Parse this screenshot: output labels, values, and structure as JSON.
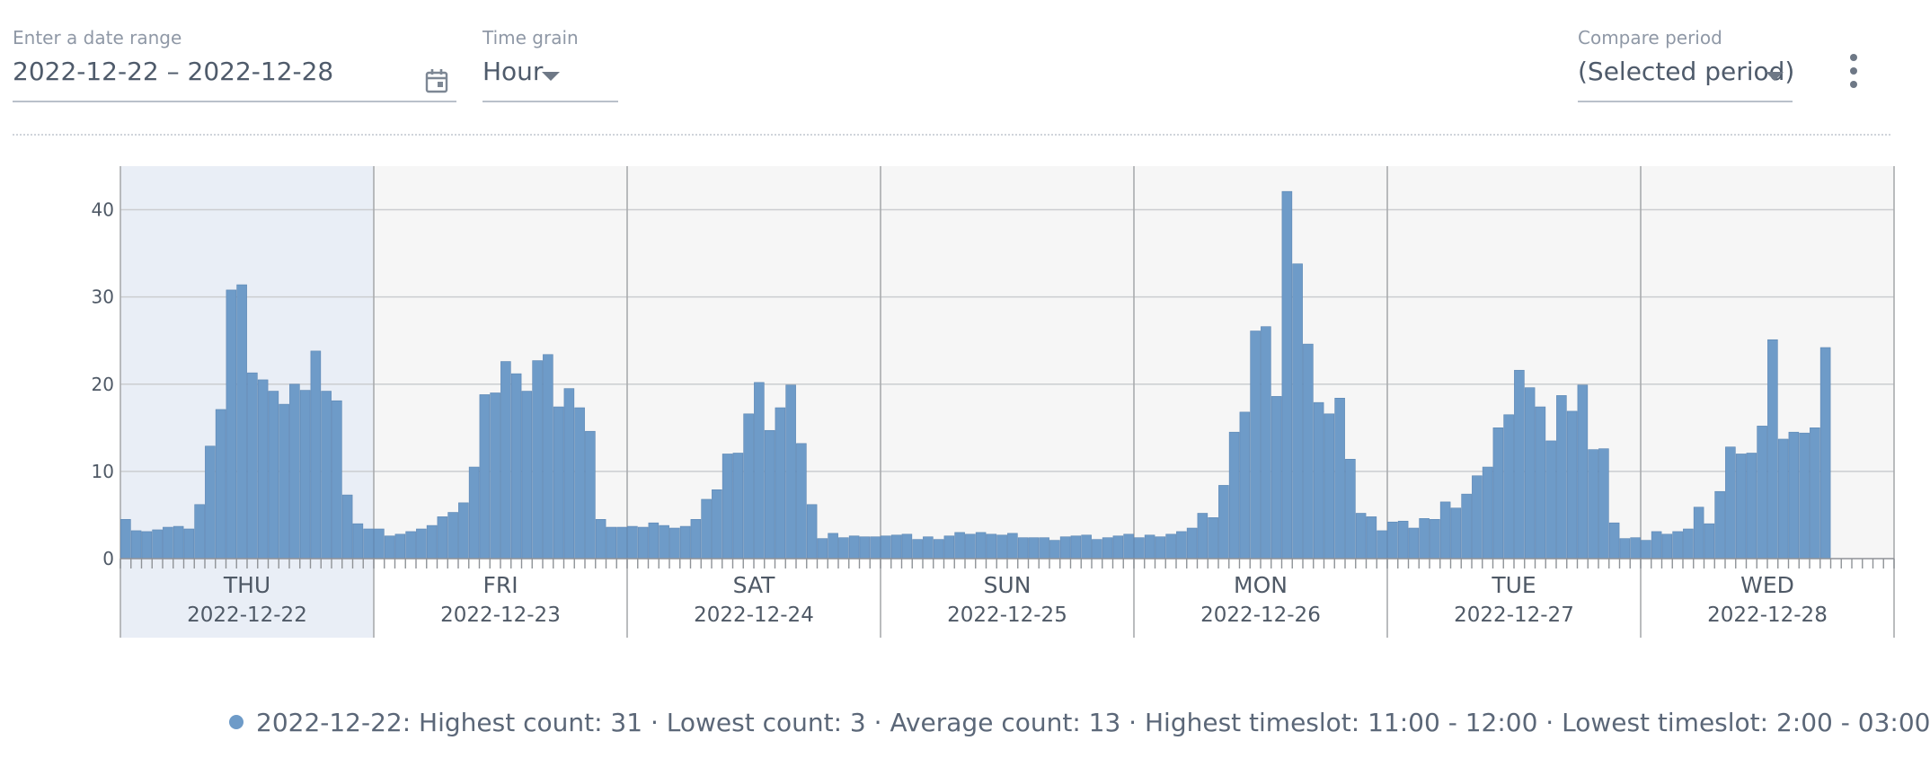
{
  "date_range": {
    "label": "Enter a date range",
    "value": "2022-12-22 – 2022-12-28"
  },
  "time_grain": {
    "label": "Time grain",
    "value": "Hour"
  },
  "compare_period": {
    "label": "Compare period",
    "value": "(Selected period)"
  },
  "icons": {
    "calendar": "calendar-icon",
    "menu": "more-vert-icon",
    "dropdown": "caret-down-icon"
  },
  "colors": {
    "bar": "#6e9bc8",
    "bar_stroke": "#5b86b3",
    "highlight": "#e9eef6",
    "plot_bg": "#f6f6f6"
  },
  "legend": {
    "date": "2022-12-22",
    "text": "2022-12-22: Highest count: 31 · Lowest count: 3 · Average count: 13 · Highest timeslot: 11:00 - 12:00 · Lowest timeslot: 2:00 - 03:00"
  },
  "chart_data": {
    "type": "bar",
    "ylim": [
      0,
      45
    ],
    "yticks": [
      0,
      10,
      20,
      30,
      40
    ],
    "grid": true,
    "highlighted_day": 0,
    "days": [
      {
        "weekday": "THU",
        "date": "2022-12-22",
        "values": [
          4.5,
          3.2,
          3.1,
          3.3,
          3.6,
          3.7,
          3.4,
          6.2,
          12.9,
          17.1,
          30.8,
          31.4,
          21.3,
          20.5,
          19.2,
          17.7,
          20.0,
          19.3,
          23.8,
          19.2,
          18.1,
          7.3,
          4.0,
          3.4
        ]
      },
      {
        "weekday": "FRI",
        "date": "2022-12-23",
        "values": [
          3.4,
          2.6,
          2.8,
          3.1,
          3.4,
          3.8,
          4.8,
          5.3,
          6.4,
          10.5,
          18.8,
          19.0,
          22.6,
          21.2,
          19.2,
          22.7,
          23.4,
          17.4,
          19.5,
          17.3,
          14.6,
          4.5,
          3.6,
          3.6
        ]
      },
      {
        "weekday": "SAT",
        "date": "2022-12-24",
        "values": [
          3.7,
          3.6,
          4.1,
          3.8,
          3.5,
          3.7,
          4.5,
          6.8,
          7.9,
          12.0,
          12.1,
          16.6,
          20.2,
          14.7,
          17.3,
          19.9,
          13.2,
          6.2,
          2.3,
          2.9,
          2.4,
          2.6,
          2.5,
          2.5
        ]
      },
      {
        "weekday": "SUN",
        "date": "2022-12-25",
        "values": [
          2.6,
          2.7,
          2.8,
          2.2,
          2.5,
          2.2,
          2.6,
          3.0,
          2.8,
          3.0,
          2.8,
          2.7,
          2.9,
          2.4,
          2.4,
          2.4,
          2.1,
          2.5,
          2.6,
          2.7,
          2.2,
          2.4,
          2.6,
          2.8
        ]
      },
      {
        "weekday": "MON",
        "date": "2022-12-26",
        "values": [
          2.4,
          2.7,
          2.5,
          2.8,
          3.1,
          3.5,
          5.2,
          4.7,
          8.4,
          14.5,
          16.8,
          26.1,
          26.6,
          18.6,
          42.1,
          33.8,
          24.6,
          17.9,
          16.6,
          18.4,
          11.4,
          5.2,
          4.8,
          3.2
        ]
      },
      {
        "weekday": "TUE",
        "date": "2022-12-27",
        "values": [
          4.2,
          4.3,
          3.5,
          4.6,
          4.5,
          6.5,
          5.8,
          7.4,
          9.5,
          10.5,
          15.0,
          16.5,
          21.6,
          19.6,
          17.4,
          13.5,
          18.7,
          16.9,
          19.9,
          12.5,
          12.6,
          4.1,
          2.3,
          2.4
        ]
      },
      {
        "weekday": "WED",
        "date": "2022-12-28",
        "values": [
          2.1,
          3.1,
          2.8,
          3.1,
          3.4,
          5.9,
          4.0,
          7.7,
          12.8,
          12.0,
          12.1,
          15.2,
          25.1,
          13.7,
          14.5,
          14.4,
          15.0,
          24.2
        ]
      }
    ]
  }
}
